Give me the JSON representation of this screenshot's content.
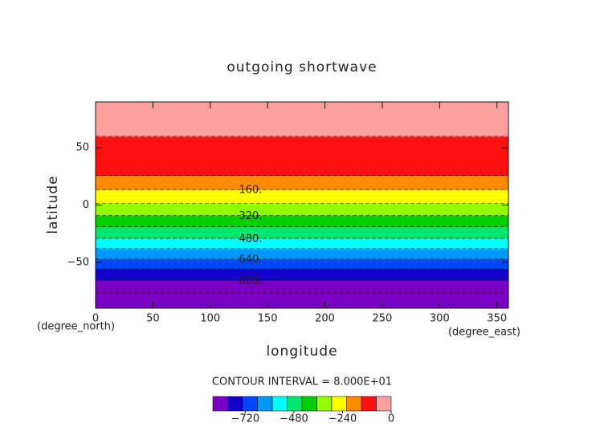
{
  "chart_data": {
    "type": "contour",
    "title": "outgoing shortwave",
    "x_label": "longitude",
    "y_label": "latitude",
    "x_unit": "(degree_east)",
    "y_unit": "(degree_north)",
    "note": "CONTOUR INTERVAL = 8.000E+01",
    "xlim": [
      0,
      360
    ],
    "ylim": [
      -90,
      90
    ],
    "xticks": [
      0,
      50,
      100,
      150,
      200,
      250,
      300,
      350
    ],
    "yticks": [
      {
        "value": -50,
        "label": "−50"
      },
      0,
      50
    ],
    "lat": [
      -90,
      -80,
      -70,
      -60,
      -50,
      -40,
      -30,
      -20,
      -10,
      0,
      10,
      20,
      30,
      40,
      50,
      60,
      70,
      80,
      90
    ],
    "values": [
      -940,
      -905,
      -832,
      -760,
      -668,
      -578,
      -488,
      -408,
      -328,
      -250,
      -185,
      -115,
      -55,
      -20,
      -5,
      0,
      0,
      0,
      0
    ],
    "levels": [
      -880,
      -800,
      -720,
      -640,
      -560,
      -480,
      -400,
      -320,
      -240,
      -160,
      -80,
      0
    ],
    "colors": [
      "#7a00c4",
      "#1400cc",
      "#0048ff",
      "#0098ff",
      "#00ffff",
      "#00e870",
      "#00d000",
      "#90ff00",
      "#ffff00",
      "#ff8c00",
      "#ff1010",
      "#ffa0a0"
    ],
    "contour_labels": [
      {
        "level": -160,
        "label": "160."
      },
      {
        "level": -320,
        "label": "320."
      },
      {
        "level": -480,
        "label": "480."
      },
      {
        "level": -640,
        "label": "640."
      },
      {
        "level": -800,
        "label": "800."
      }
    ],
    "colorbar_ticks": [
      {
        "value": -720,
        "label": "−720"
      },
      {
        "value": -480,
        "label": "−480"
      },
      {
        "value": -240,
        "label": "−240"
      },
      0
    ]
  }
}
